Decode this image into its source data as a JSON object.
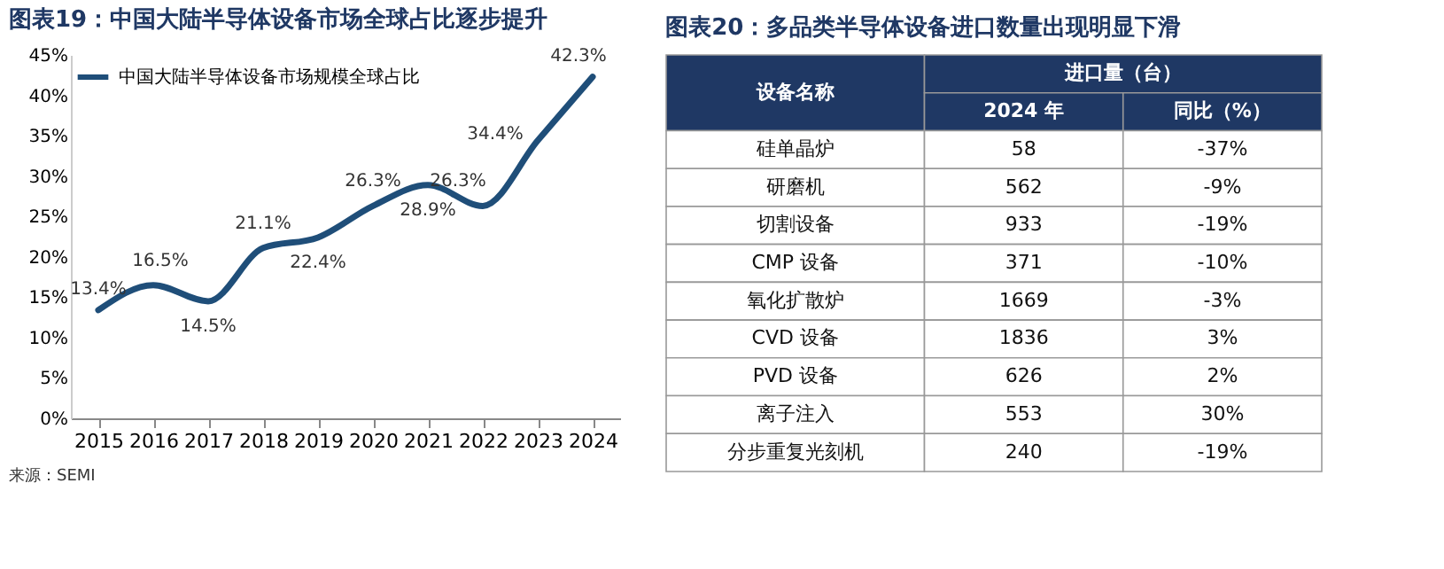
{
  "chart_data": [
    {
      "type": "line",
      "title": "图表19：中国大陆半导体设备市场全球占比逐步提升",
      "categories": [
        "2015",
        "2016",
        "2017",
        "2018",
        "2019",
        "2020",
        "2021",
        "2022",
        "2023",
        "2024"
      ],
      "series": [
        {
          "name": "中国大陆半导体设备市场规模全球占比",
          "color": "#1f4e79",
          "values": [
            13.4,
            16.5,
            14.5,
            21.1,
            22.4,
            26.3,
            28.9,
            26.3,
            34.4,
            42.3
          ],
          "value_labels": [
            "13.4%",
            "16.5%",
            "14.5%",
            "21.1%",
            "22.4%",
            "26.3%",
            "28.9%",
            "26.3%",
            "34.4%",
            "42.3%"
          ]
        }
      ],
      "ylim": [
        0,
        45
      ],
      "yticks": [
        {
          "value": 0,
          "label": "0%"
        },
        {
          "value": 5,
          "label": "5%"
        },
        {
          "value": 10,
          "label": "10%"
        },
        {
          "value": 15,
          "label": "15%"
        },
        {
          "value": 20,
          "label": "20%"
        },
        {
          "value": 25,
          "label": "25%"
        },
        {
          "value": 30,
          "label": "30%"
        },
        {
          "value": 35,
          "label": "35%"
        },
        {
          "value": 40,
          "label": "40%"
        },
        {
          "value": 45,
          "label": "45%"
        }
      ],
      "grid": false,
      "legend": "top left",
      "marker": "none",
      "line_style": "solid",
      "annotations": [
        "来源：SEMI"
      ]
    },
    {
      "type": "other",
      "title": "图表20：多品类半导体设备进口数量出现明显下滑",
      "ylabel": "设备名称",
      "xlabel": "进口量（台）",
      "categories": [
        "2024 年",
        "同比（%）"
      ],
      "y_categories": [
        "硅单晶炉",
        "研磨机",
        "切割设备",
        "CMP 设备",
        "氧化扩散炉",
        "CVD 设备",
        "PVD 设备",
        "离子注入",
        "分步重复光刻机"
      ],
      "cells": [
        [
          "58",
          "-37%"
        ],
        [
          "562",
          "-9%"
        ],
        [
          "933",
          "-19%"
        ],
        [
          "371",
          "-10%"
        ],
        [
          "1669",
          "-3%"
        ],
        [
          "1836",
          "3%"
        ],
        [
          "626",
          "2%"
        ],
        [
          "553",
          "30%"
        ],
        [
          "240",
          "-19%"
        ]
      ]
    }
  ]
}
